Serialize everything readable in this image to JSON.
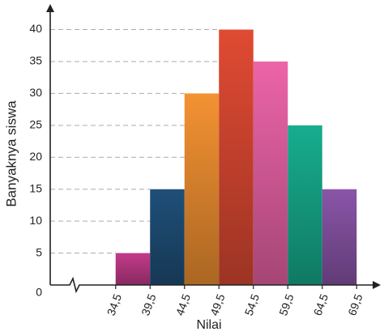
{
  "chart_data": {
    "type": "histogram",
    "xlabel": "Nilai",
    "ylabel": "Banyaknya siswa",
    "bins": [
      34.5,
      39.5,
      44.5,
      49.5,
      54.5,
      59.5,
      64.5,
      69.5
    ],
    "values": [
      5,
      15,
      30,
      40,
      35,
      25,
      15
    ],
    "colors": [
      "#c23b8a",
      "#1f4f78",
      "#f39232",
      "#e04a33",
      "#ec64a8",
      "#17ad8e",
      "#8a55a8"
    ],
    "xlim": [
      25,
      73
    ],
    "ylim": [
      0,
      44
    ],
    "xticks": [
      {
        "value": 34.5,
        "label": "34,5"
      },
      {
        "value": 39.5,
        "label": "39,5"
      },
      {
        "value": 44.5,
        "label": "44,5"
      },
      {
        "value": 49.5,
        "label": "49,5"
      },
      {
        "value": 54.5,
        "label": "54,5"
      },
      {
        "value": 59.5,
        "label": "59,5"
      },
      {
        "value": 64.5,
        "label": "64,5"
      },
      {
        "value": 69.5,
        "label": "69,5"
      }
    ],
    "yticks": [
      0,
      5,
      10,
      15,
      20,
      25,
      30,
      35,
      40
    ],
    "grid": true
  }
}
